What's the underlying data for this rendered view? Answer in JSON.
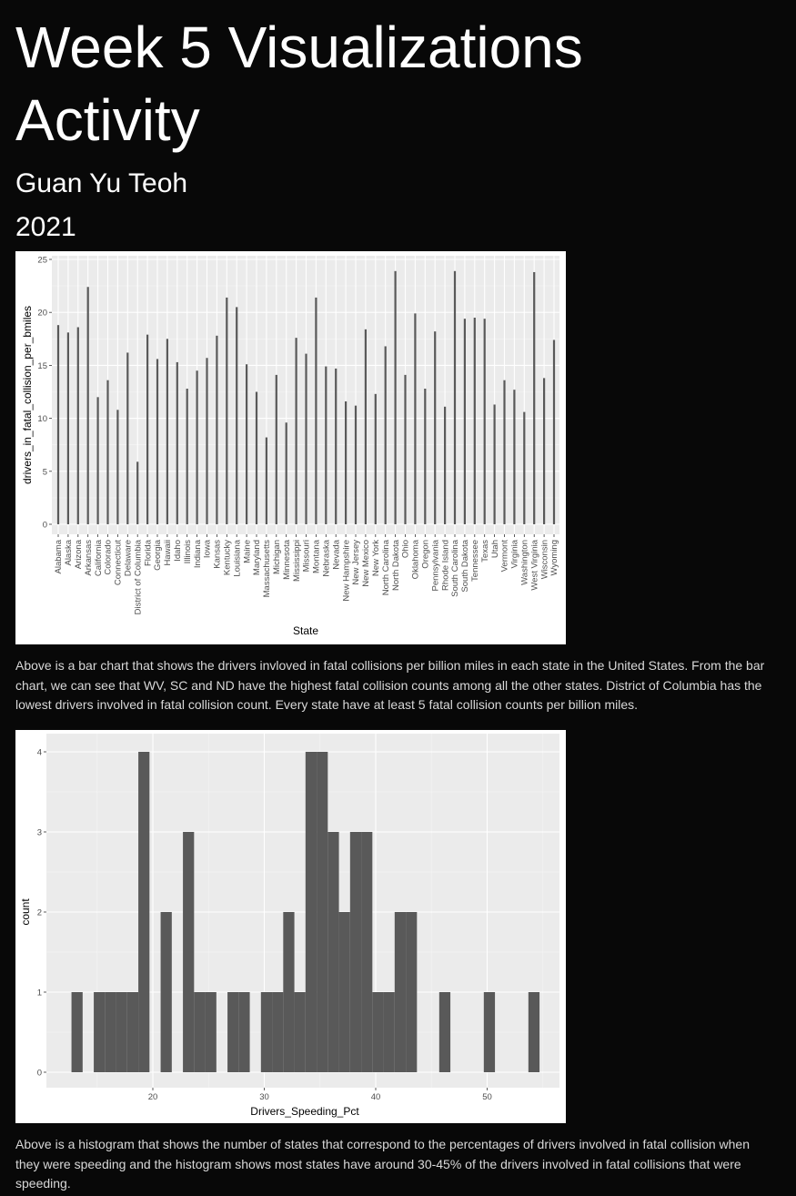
{
  "page": {
    "title": "Week 5 Visualizations Activity",
    "author": "Guan Yu Teoh",
    "year": "2021",
    "paragraph1": "Above is a bar chart that shows the drivers invloved in fatal collisions per billion miles in each state in the United States. From the bar chart, we can see that WV, SC and ND have the highest fatal collision counts among all the other states. District of Columbia has the lowest drivers involved in fatal collision count. Every state have at least 5 fatal collision counts per billion miles.",
    "paragraph2": "Above is a histogram that shows the number of states that correspond to the percentages of drivers involved in fatal collision when they were speeding and the histogram shows most states have around 30-45% of the drivers involved in fatal collisions that were speeding."
  },
  "chart_data": [
    {
      "type": "bar",
      "xlabel": "State",
      "ylabel": "drivers_in_fatal_collision_per_bmiles",
      "ylim": [
        0,
        25
      ],
      "yticks": [
        0,
        5,
        10,
        15,
        20,
        25
      ],
      "grid": true,
      "bar_color": "#595959",
      "panel_color": "#ebebeb",
      "categories": [
        "Alabama",
        "Alaska",
        "Arizona",
        "Arkansas",
        "California",
        "Colorado",
        "Connecticut",
        "Delaware",
        "District of Columbia",
        "Florida",
        "Georgia",
        "Hawaii",
        "Idaho",
        "Illinois",
        "Indiana",
        "Iowa",
        "Kansas",
        "Kentucky",
        "Louisiana",
        "Maine",
        "Maryland",
        "Massachusetts",
        "Michigan",
        "Minnesota",
        "Mississippi",
        "Missouri",
        "Montana",
        "Nebraska",
        "Nevada",
        "New Hampshire",
        "New Jersey",
        "New Mexico",
        "New York",
        "North Carolina",
        "North Dakota",
        "Ohio",
        "Oklahoma",
        "Oregon",
        "Pennsylvania",
        "Rhode Island",
        "South Carolina",
        "South Dakota",
        "Tennessee",
        "Texas",
        "Utah",
        "Vermont",
        "Virginia",
        "Washington",
        "West Virginia",
        "Wisconsin",
        "Wyoming"
      ],
      "values": [
        18.8,
        18.1,
        18.6,
        22.4,
        12.0,
        13.6,
        10.8,
        16.2,
        5.9,
        17.9,
        15.6,
        17.5,
        15.3,
        12.8,
        14.5,
        15.7,
        17.8,
        21.4,
        20.5,
        15.1,
        12.5,
        8.2,
        14.1,
        9.6,
        17.6,
        16.1,
        21.4,
        14.9,
        14.7,
        11.6,
        11.2,
        18.4,
        12.3,
        16.8,
        23.9,
        14.1,
        19.9,
        12.8,
        18.2,
        11.1,
        23.9,
        19.4,
        19.5,
        19.4,
        11.3,
        13.6,
        12.7,
        10.6,
        23.8,
        13.8,
        17.4
      ]
    },
    {
      "type": "histogram",
      "xlabel": "Drivers_Speeding_Pct",
      "ylabel": "count",
      "xlim": [
        11,
        57
      ],
      "xticks": [
        20,
        30,
        40,
        50
      ],
      "ylim": [
        -0.2,
        4.2
      ],
      "yticks": [
        0,
        1,
        2,
        3,
        4
      ],
      "grid": true,
      "bar_color": "#595959",
      "panel_color": "#ebebeb",
      "bins": [
        {
          "x0": 12.7,
          "x1": 13.7,
          "count": 1
        },
        {
          "x0": 13.7,
          "x1": 14.7,
          "count": 0
        },
        {
          "x0": 14.7,
          "x1": 15.7,
          "count": 1
        },
        {
          "x0": 15.7,
          "x1": 16.7,
          "count": 1
        },
        {
          "x0": 16.7,
          "x1": 17.7,
          "count": 1
        },
        {
          "x0": 17.7,
          "x1": 18.7,
          "count": 1
        },
        {
          "x0": 18.7,
          "x1": 19.7,
          "count": 4
        },
        {
          "x0": 19.7,
          "x1": 20.7,
          "count": 0
        },
        {
          "x0": 20.7,
          "x1": 21.7,
          "count": 2
        },
        {
          "x0": 21.7,
          "x1": 22.7,
          "count": 0
        },
        {
          "x0": 22.7,
          "x1": 23.7,
          "count": 3
        },
        {
          "x0": 23.7,
          "x1": 24.7,
          "count": 1
        },
        {
          "x0": 24.7,
          "x1": 25.7,
          "count": 1
        },
        {
          "x0": 25.7,
          "x1": 26.7,
          "count": 0
        },
        {
          "x0": 26.7,
          "x1": 27.7,
          "count": 1
        },
        {
          "x0": 27.7,
          "x1": 28.7,
          "count": 1
        },
        {
          "x0": 28.7,
          "x1": 29.7,
          "count": 0
        },
        {
          "x0": 29.7,
          "x1": 30.7,
          "count": 1
        },
        {
          "x0": 30.7,
          "x1": 31.7,
          "count": 1
        },
        {
          "x0": 31.7,
          "x1": 32.7,
          "count": 2
        },
        {
          "x0": 32.7,
          "x1": 33.7,
          "count": 1
        },
        {
          "x0": 33.7,
          "x1": 34.7,
          "count": 4
        },
        {
          "x0": 34.7,
          "x1": 35.7,
          "count": 4
        },
        {
          "x0": 35.7,
          "x1": 36.7,
          "count": 3
        },
        {
          "x0": 36.7,
          "x1": 37.7,
          "count": 2
        },
        {
          "x0": 37.7,
          "x1": 38.7,
          "count": 3
        },
        {
          "x0": 38.7,
          "x1": 39.7,
          "count": 3
        },
        {
          "x0": 39.7,
          "x1": 40.7,
          "count": 1
        },
        {
          "x0": 40.7,
          "x1": 41.7,
          "count": 1
        },
        {
          "x0": 41.7,
          "x1": 42.7,
          "count": 2
        },
        {
          "x0": 42.7,
          "x1": 43.7,
          "count": 2
        },
        {
          "x0": 43.7,
          "x1": 44.7,
          "count": 0
        },
        {
          "x0": 44.7,
          "x1": 45.7,
          "count": 0
        },
        {
          "x0": 45.7,
          "x1": 46.7,
          "count": 1
        },
        {
          "x0": 46.7,
          "x1": 47.7,
          "count": 0
        },
        {
          "x0": 47.7,
          "x1": 48.7,
          "count": 0
        },
        {
          "x0": 48.7,
          "x1": 49.7,
          "count": 0
        },
        {
          "x0": 49.7,
          "x1": 50.7,
          "count": 1
        },
        {
          "x0": 50.7,
          "x1": 51.7,
          "count": 0
        },
        {
          "x0": 51.7,
          "x1": 52.7,
          "count": 0
        },
        {
          "x0": 52.7,
          "x1": 53.7,
          "count": 0
        },
        {
          "x0": 53.7,
          "x1": 54.7,
          "count": 1
        }
      ]
    }
  ]
}
